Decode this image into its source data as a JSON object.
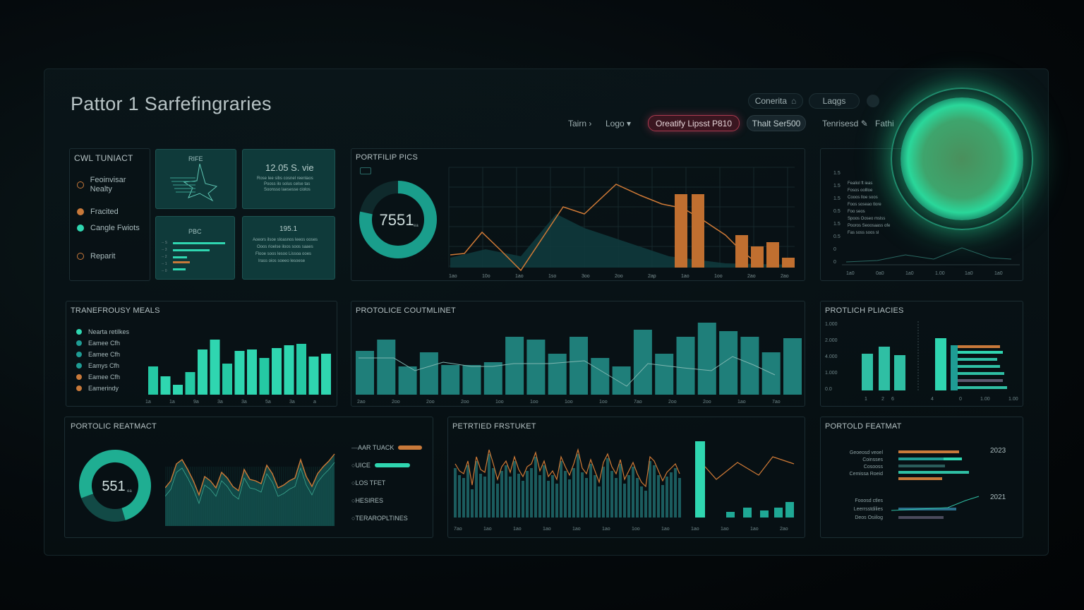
{
  "header": {
    "title": "Pattor 1 Sarfefingraries",
    "top_pills": [
      "Conerita",
      "Laqgs"
    ],
    "nav": {
      "item1": "Tairn",
      "item2": "Logo",
      "highlight_button": "Oreatify Lipsst P810",
      "secondary_button": "Thalt Ser500",
      "item3": "Tenrisesd",
      "item4": "Fathi"
    }
  },
  "left_top": {
    "title": "CWL TUNIACT",
    "legend": [
      {
        "label": "Feoinvisar Nealty",
        "kind": "ring",
        "color": "#c8793a"
      },
      {
        "label": "Fracited",
        "kind": "dot",
        "color": "#c8793a"
      },
      {
        "label": "Cangle Fwiots",
        "kind": "dot",
        "color": "#2fd6b0"
      },
      {
        "label": "Reparit",
        "kind": "ring",
        "color": "#c8793a"
      }
    ]
  },
  "tiles": {
    "tile1_title": "RIFE",
    "tile2_title": "12.05 S. vie",
    "tile2_lines": [
      "Rose lee sibs cosnel reenlaos",
      "Pooss ilo solus celse tas",
      "Soonsso laesesse ciolos"
    ],
    "tile3_title": "PBC",
    "tile3_ticks": [
      "-- S",
      "-- 3",
      "-- 2",
      "-- 1",
      "-- 0"
    ],
    "tile4_title": "195.1",
    "tile4_lines": [
      "Aoeors ilsoe sloasnos leeos ooses",
      "Ooos rioelse iloos soos saaes",
      "Flooe soos lesoo Lissoa ooes",
      "Irass oios soeeo lesoese"
    ]
  },
  "portfolio_pics": {
    "title": "PORTFILIP PICS",
    "donut_value": "7551",
    "donut_unit": "ea",
    "x_labels": [
      "1ao",
      "10o",
      "1ao",
      "1so",
      "3oo",
      "2oo",
      "2ap",
      "1ao",
      "1oo",
      "2ao",
      "2ao"
    ]
  },
  "right_top": {
    "y_labels": [
      "1.5",
      "1.5",
      "1.5",
      "0.5",
      "1.5",
      "0.5",
      "0",
      "0"
    ],
    "x_labels": [
      "1a0",
      "0a0",
      "1a0",
      "1.00",
      "1a0",
      "1a0"
    ],
    "text_lines": [
      "Fealiol ft ieas",
      "Fosos oollloe",
      "Cooos lloe soos",
      "Foos soseao tlore",
      "Foo seos",
      "Spoos Ooseo mslss",
      "Pooros Seoosaass ofe",
      "Fas soss soos sl"
    ]
  },
  "row2_left": {
    "title": "TRANEFROUSY MEALS",
    "legend": [
      {
        "label": "Nearta retilkes",
        "color": "#2fd6b0"
      },
      {
        "label": "Eamee Cfh",
        "color": "#1f9c94"
      },
      {
        "label": "Eamee Cfh",
        "color": "#1f9c94"
      },
      {
        "label": "Eamys Cfh",
        "color": "#1f9c94"
      },
      {
        "label": "Eamee Cfh",
        "color": "#c8793a"
      },
      {
        "label": "Eamerindy",
        "color": "#c8793a"
      }
    ],
    "x_labels": [
      "1a",
      "1a",
      "9a",
      "3a",
      "3a",
      "5a",
      "3a",
      "a"
    ]
  },
  "row2_mid": {
    "title": "PROTOLICE COUTMLINET",
    "x_labels": [
      "2ao",
      "2oo",
      "2oo",
      "2oo",
      "1oo",
      "1oo",
      "1oo",
      "1oo",
      "7ao",
      "2oo",
      "2oo",
      "1ao",
      "7ao"
    ]
  },
  "row2_right": {
    "title": "PROTLICH PLIACIES",
    "y_labels": [
      "1.000",
      "2.000",
      "4.000",
      "1.000",
      "0.0"
    ],
    "x_labels": [
      "1",
      "2",
      "6",
      "4",
      "0",
      "1.00",
      "1.00"
    ]
  },
  "row3_left": {
    "title": "PORTOLIC REATMACT",
    "donut_value": "551",
    "donut_unit": "ea",
    "legend": [
      {
        "label": "AAR TUACK",
        "bar": "#c8793a"
      },
      {
        "label": "UICE",
        "bar": "#2fd6b0"
      },
      {
        "label": "LOS TFET",
        "bar": ""
      },
      {
        "label": "HESIRES",
        "bar": ""
      },
      {
        "label": "TERAROPLTINES",
        "bar": ""
      }
    ]
  },
  "row3_mid": {
    "title": "PETRTIED FRSTUKET",
    "x_labels": [
      "7ao",
      "1ao",
      "1ao",
      "1ao",
      "1ao",
      "1ao",
      "1oo",
      "1ao",
      "1ao",
      "1ao",
      "1ao",
      "2ao"
    ]
  },
  "row3_right": {
    "title": "PORTOLD FEATMAT",
    "year1": "2023",
    "year2": "2021",
    "rows_a": [
      "Geoeosd veoel",
      "Coinsses",
      "Cosooss",
      "Cemissa Roeid"
    ],
    "rows_b": [
      "Fooosd ctles",
      "Leerrsstdilies",
      "Deos Osiilog"
    ]
  },
  "colors": {
    "teal": "#2fd6b0",
    "dark_teal": "#1d6a68",
    "orange": "#c8793a",
    "pink_button": "#a93a4f"
  }
}
